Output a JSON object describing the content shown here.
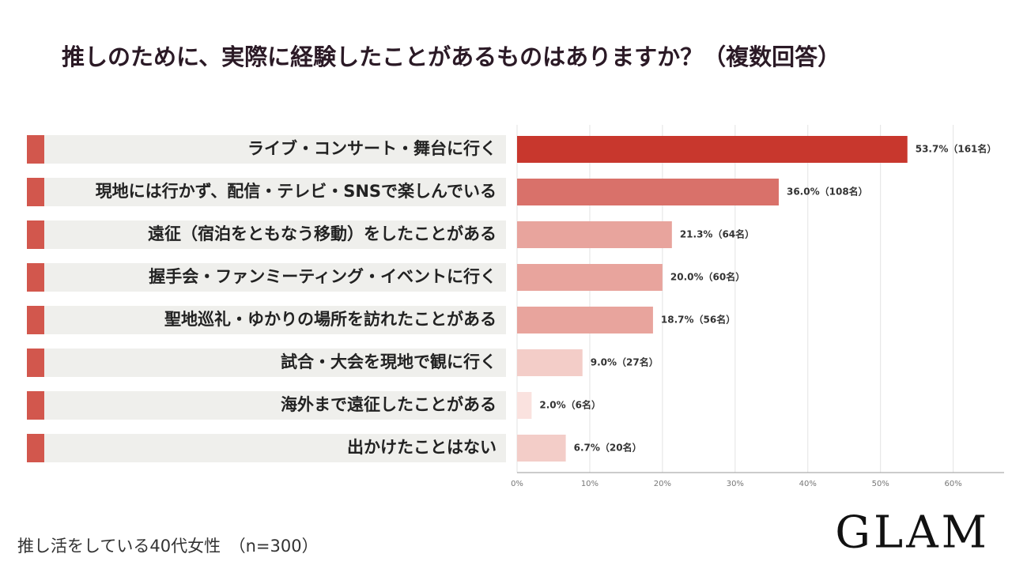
{
  "chart_data": {
    "type": "bar",
    "orientation": "horizontal",
    "title": "推しのために、実際に経験したことがあるものはありますか？（複数回答）",
    "note": "推し活をしている40代女性　（n=300）",
    "brand": "GLAM",
    "categories": [
      "ライブ・コンサート・舞台に行く",
      "現地には行かず、配信・テレビ・SNSで楽しんでいる",
      "遠征（宿泊をともなう移動）をしたことがある",
      "握手会・ファンミーティング・イベントに行く",
      "聖地巡礼・ゆかりの場所を訪れたことがある",
      "試合・大会を現地で観に行く",
      "海外まで遠征したことがある",
      "出かけたことはない"
    ],
    "values": [
      53.7,
      36.0,
      21.3,
      20.0,
      18.7,
      9.0,
      2.0,
      6.7
    ],
    "value_labels": [
      "53.7%（161名）",
      "36.0%（108名）",
      "21.3%（64名）",
      "20.0%（60名）",
      "18.7%（56名）",
      "9.0%（27名）",
      "2.0%（6名）",
      "6.7%（20名）"
    ],
    "colors": [
      "#c8372d",
      "#d9716a",
      "#e8a49d",
      "#e8a49d",
      "#e8a49d",
      "#f3cdc8",
      "#fae2df",
      "#f3cdc8"
    ],
    "xlim": [
      0,
      67
    ],
    "xticks": [
      {
        "value": 0,
        "label": "0%"
      },
      {
        "value": 10,
        "label": "10%"
      },
      {
        "value": 20,
        "label": "20%"
      },
      {
        "value": 30,
        "label": "30%"
      },
      {
        "value": 40,
        "label": "40%"
      },
      {
        "value": 50,
        "label": "50%"
      },
      {
        "value": 60,
        "label": "60%"
      }
    ],
    "grid": true
  }
}
